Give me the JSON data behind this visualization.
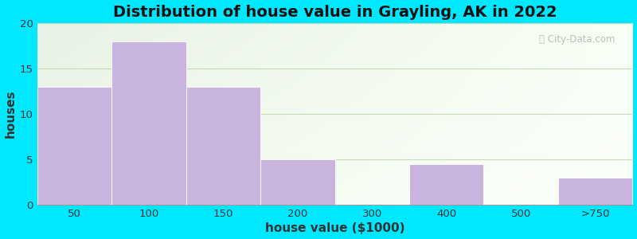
{
  "title": "Distribution of house value in Grayling, AK in 2022",
  "xlabel": "house value ($1000)",
  "ylabel": "houses",
  "categories": [
    "50",
    "100",
    "150",
    "200",
    "300",
    "400",
    "500",
    ">750"
  ],
  "values": [
    13,
    18,
    13,
    5,
    0,
    4.5,
    0,
    3
  ],
  "bar_color": "#c9b4e0",
  "bar_edgecolor": "#ffffff",
  "ylim": [
    0,
    20
  ],
  "yticks": [
    0,
    5,
    10,
    15,
    20
  ],
  "background_outer": "#00e8ff",
  "grid_color": "#c8d8b8",
  "title_fontsize": 14,
  "axis_label_fontsize": 11,
  "tick_fontsize": 9.5,
  "watermark_text": "City-Data.com",
  "bg_color_topleft": "#e8f0e0",
  "bg_color_topright": "#f0f8e8",
  "bg_color_bottomleft": "#e8f5ea",
  "bg_color_bottomright": "#f8fff8"
}
